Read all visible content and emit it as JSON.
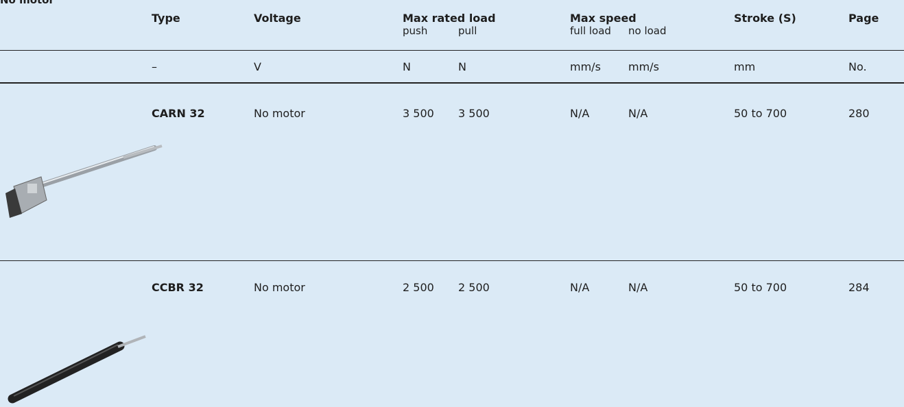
{
  "header": {
    "title": "No motor"
  },
  "table": {
    "columns": [
      "Type",
      "Voltage",
      "Max rated load",
      "Max speed",
      "Stroke (S)",
      "Page"
    ],
    "subcolumns": {
      "load": [
        "push",
        "pull"
      ],
      "speed": [
        "full load",
        "no  load"
      ]
    },
    "units": [
      "–",
      "V",
      "N",
      "N",
      "mm/s",
      "mm/s",
      "mm",
      "No."
    ],
    "rows": [
      [
        "CARN 32",
        "No motor",
        "3 500",
        "3 500",
        "N/A",
        "N/A",
        "50 to 700",
        "280"
      ],
      [
        "CCBR 32",
        "No motor",
        "2 500",
        "2 500",
        "N/A",
        "N/A",
        "50 to 700",
        "284"
      ]
    ]
  }
}
